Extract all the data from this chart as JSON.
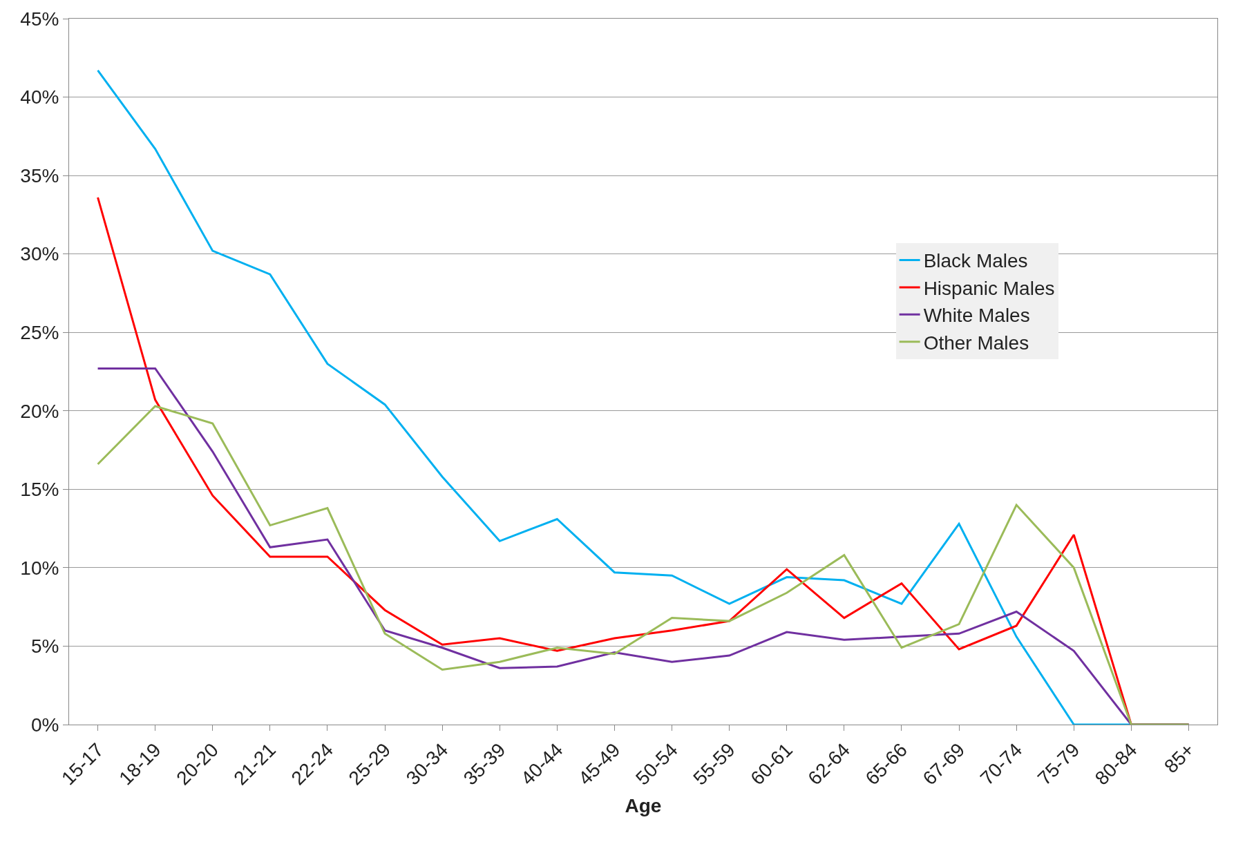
{
  "chart_data": {
    "type": "line",
    "xlabel": "Age",
    "categories": [
      "15-17",
      "18-19",
      "20-20",
      "21-21",
      "22-24",
      "25-29",
      "30-34",
      "35-39",
      "40-44",
      "45-49",
      "50-54",
      "55-59",
      "60-61",
      "62-64",
      "65-66",
      "67-69",
      "70-74",
      "75-79",
      "80-84",
      "85+"
    ],
    "series": [
      {
        "name": "Black Males",
        "color": "#00b0f0",
        "values": [
          41.7,
          36.7,
          30.2,
          28.7,
          23.0,
          20.4,
          15.8,
          11.7,
          13.1,
          9.7,
          9.5,
          7.7,
          9.4,
          9.2,
          7.7,
          12.8,
          5.6,
          0,
          0,
          0
        ]
      },
      {
        "name": "Hispanic Males",
        "color": "#ff0000",
        "values": [
          33.6,
          20.7,
          14.6,
          10.7,
          10.7,
          7.3,
          5.1,
          5.5,
          4.7,
          5.5,
          6.0,
          6.6,
          9.9,
          6.8,
          9.0,
          4.8,
          6.3,
          12.1,
          0,
          0
        ]
      },
      {
        "name": "White Males",
        "color": "#7030a0",
        "values": [
          22.7,
          22.7,
          17.4,
          11.3,
          11.8,
          6.0,
          4.9,
          3.6,
          3.7,
          4.6,
          4.0,
          4.4,
          5.9,
          5.4,
          5.6,
          5.8,
          7.2,
          4.7,
          0,
          0
        ]
      },
      {
        "name": "Other Males",
        "color": "#9bbb59",
        "values": [
          16.6,
          20.3,
          19.2,
          12.7,
          13.8,
          5.8,
          3.5,
          4.0,
          4.9,
          4.5,
          6.8,
          6.6,
          8.4,
          10.8,
          4.9,
          6.4,
          14.0,
          10.0,
          0,
          0
        ]
      }
    ],
    "ylim": [
      0,
      45
    ],
    "yticks": [
      {
        "value": 0,
        "label": "0%"
      },
      {
        "value": 5,
        "label": "5%"
      },
      {
        "value": 10,
        "label": "10%"
      },
      {
        "value": 15,
        "label": "15%"
      },
      {
        "value": 20,
        "label": "20%"
      },
      {
        "value": 25,
        "label": "25%"
      },
      {
        "value": 30,
        "label": "30%"
      },
      {
        "value": 35,
        "label": "35%"
      },
      {
        "value": 40,
        "label": "40%"
      },
      {
        "value": 45,
        "label": "45%"
      }
    ],
    "grid": "y",
    "legend": "right",
    "marker": "none",
    "line_style": "solid"
  }
}
